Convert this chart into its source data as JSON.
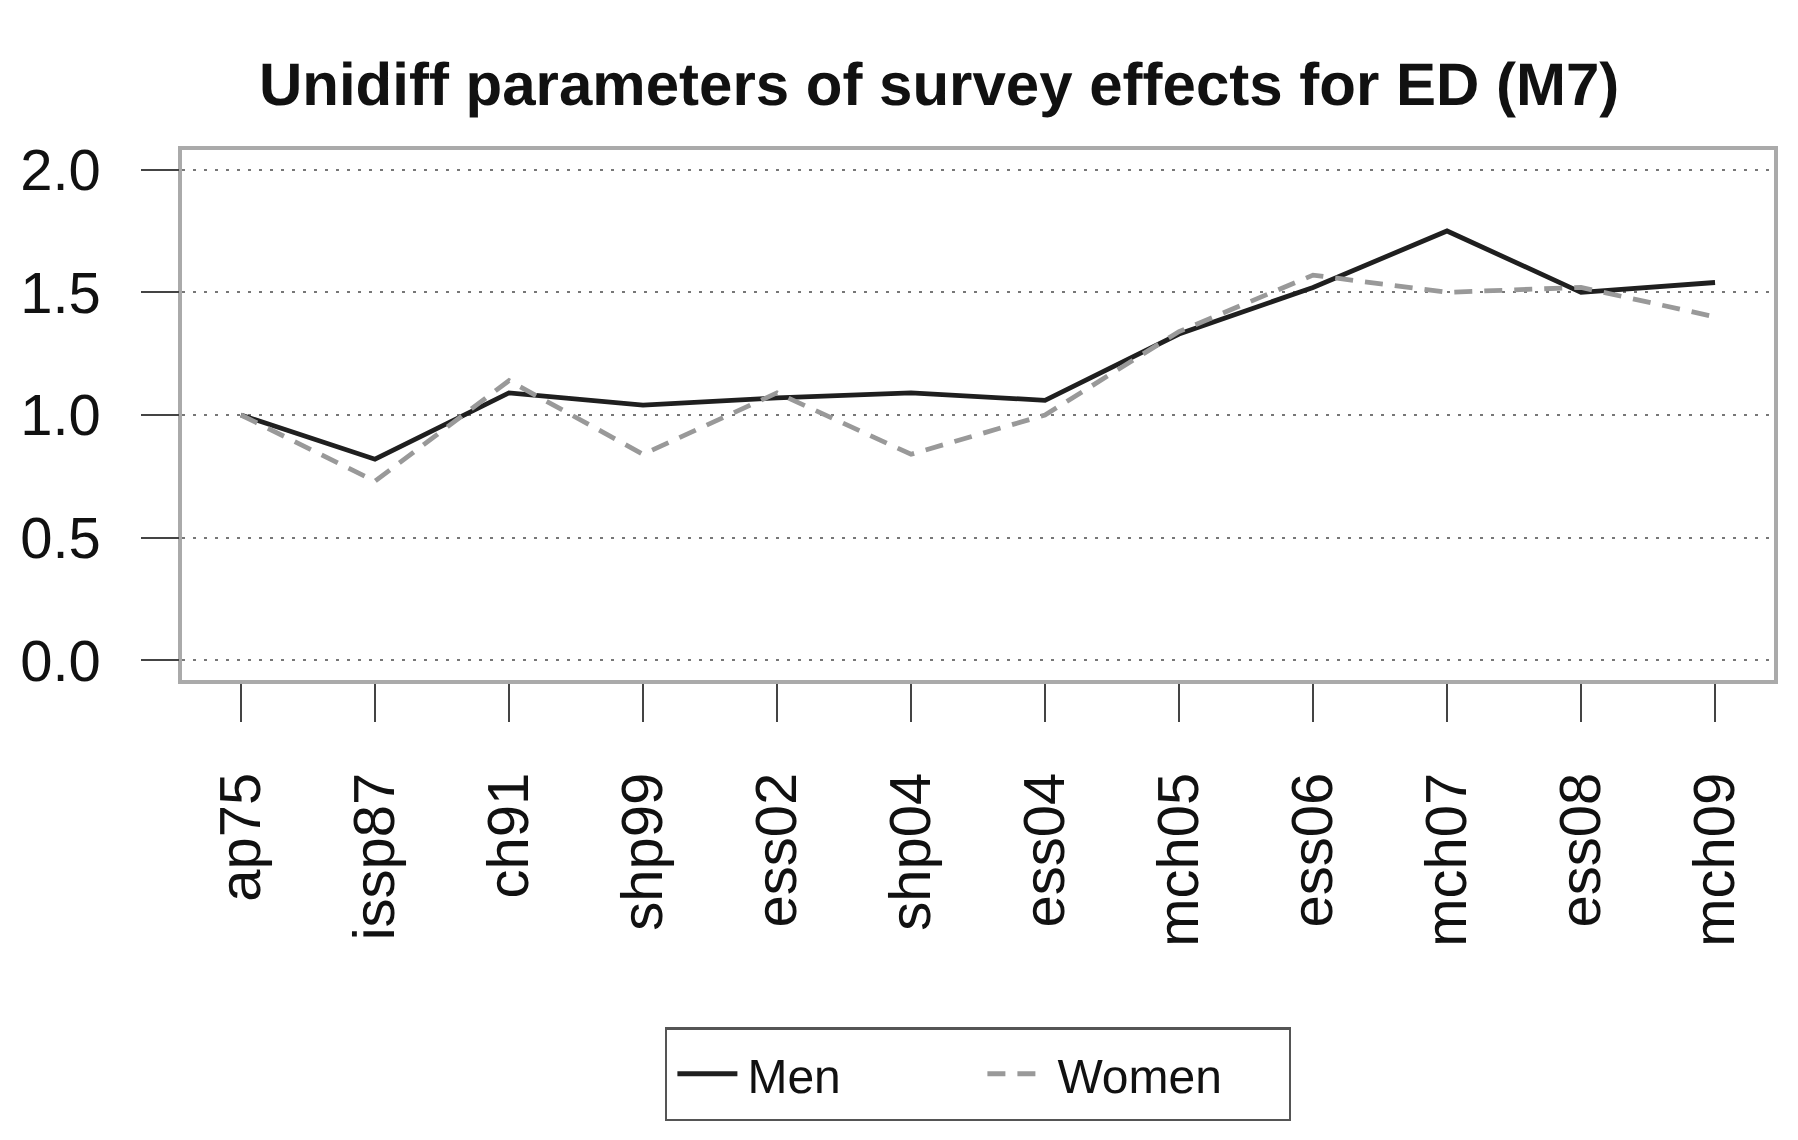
{
  "chart_data": {
    "type": "line",
    "title": "Unidiff parameters of survey effects for ED (M7)",
    "categories": [
      "ap75",
      "issp87",
      "ch91",
      "shp99",
      "ess02",
      "shp04",
      "ess04",
      "mch05",
      "ess06",
      "mch07",
      "ess08",
      "mch09"
    ],
    "series": [
      {
        "name": "Men",
        "color": "#1f1f1f",
        "line_style": "solid",
        "values": [
          1.0,
          0.82,
          1.09,
          1.04,
          1.07,
          1.09,
          1.06,
          1.33,
          1.52,
          1.75,
          1.5,
          1.54
        ]
      },
      {
        "name": "Women",
        "color": "#999999",
        "line_style": "dashed",
        "values": [
          1.0,
          0.73,
          1.14,
          0.84,
          1.09,
          0.84,
          1.0,
          1.34,
          1.57,
          1.5,
          1.52,
          1.4
        ]
      }
    ],
    "ylim": [
      -0.08,
      2.08
    ],
    "yticks": [
      {
        "value": 0,
        "label": "0.0"
      },
      0.5,
      {
        "value": 1,
        "label": "1.0"
      },
      1.5,
      {
        "value": 2,
        "label": "2.0"
      }
    ],
    "grid": "y",
    "legend": "bottom"
  }
}
